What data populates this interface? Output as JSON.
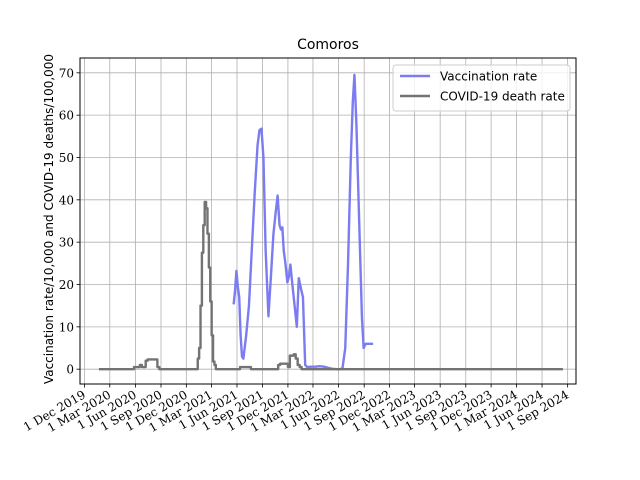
{
  "chart_data": {
    "type": "line",
    "title": "Comoros",
    "xlabel": "",
    "ylabel": "Vaccination rate/10,000 and COVID-19 deaths/100,000",
    "x_axis_type": "date",
    "xlim": [
      "2019-11-15",
      "2024-10-01"
    ],
    "ylim": [
      -3.5,
      73.5
    ],
    "y_ticks": [
      0,
      10,
      20,
      30,
      40,
      50,
      60,
      70
    ],
    "x_ticks": [
      {
        "date": "2019-12-01",
        "label": "1 Dec 2019"
      },
      {
        "date": "2020-03-01",
        "label": "1 Mar 2020"
      },
      {
        "date": "2020-06-01",
        "label": "1 Jun 2020"
      },
      {
        "date": "2020-09-01",
        "label": "1 Sep 2020"
      },
      {
        "date": "2020-12-01",
        "label": "1 Dec 2020"
      },
      {
        "date": "2021-03-01",
        "label": "1 Mar 2021"
      },
      {
        "date": "2021-06-01",
        "label": "1 Jun 2021"
      },
      {
        "date": "2021-09-01",
        "label": "1 Sep 2021"
      },
      {
        "date": "2021-12-01",
        "label": "1 Dec 2021"
      },
      {
        "date": "2022-03-01",
        "label": "1 Mar 2022"
      },
      {
        "date": "2022-06-01",
        "label": "1 Jun 2022"
      },
      {
        "date": "2022-09-01",
        "label": "1 Sep 2022"
      },
      {
        "date": "2022-12-01",
        "label": "1 Dec 2022"
      },
      {
        "date": "2023-03-01",
        "label": "1 Mar 2023"
      },
      {
        "date": "2023-06-01",
        "label": "1 Jun 2023"
      },
      {
        "date": "2023-09-01",
        "label": "1 Sep 2023"
      },
      {
        "date": "2023-12-01",
        "label": "1 Dec 2023"
      },
      {
        "date": "2024-03-01",
        "label": "1 Mar 2024"
      },
      {
        "date": "2024-06-01",
        "label": "1 Jun 2024"
      },
      {
        "date": "2024-09-01",
        "label": "1 Sep 2024"
      }
    ],
    "grid": true,
    "legend_position": "top-right",
    "series": [
      {
        "name": "Vaccination rate",
        "color": "#7b7bf2",
        "points": [
          [
            "2021-05-20",
            15.3
          ],
          [
            "2021-05-25",
            18.5
          ],
          [
            "2021-05-30",
            23.2
          ],
          [
            "2021-06-04",
            19.5
          ],
          [
            "2021-06-09",
            17.0
          ],
          [
            "2021-06-14",
            8.0
          ],
          [
            "2021-06-19",
            3.0
          ],
          [
            "2021-06-24",
            2.5
          ],
          [
            "2021-07-04",
            8.0
          ],
          [
            "2021-07-14",
            15.0
          ],
          [
            "2021-07-24",
            28.0
          ],
          [
            "2021-08-04",
            42.0
          ],
          [
            "2021-08-14",
            53.0
          ],
          [
            "2021-08-21",
            56.5
          ],
          [
            "2021-08-28",
            56.8
          ],
          [
            "2021-09-04",
            50.0
          ],
          [
            "2021-09-12",
            28.0
          ],
          [
            "2021-09-22",
            12.5
          ],
          [
            "2021-10-01",
            22.0
          ],
          [
            "2021-10-10",
            32.0
          ],
          [
            "2021-10-18",
            37.0
          ],
          [
            "2021-10-25",
            41.0
          ],
          [
            "2021-11-01",
            34.0
          ],
          [
            "2021-11-06",
            33.0
          ],
          [
            "2021-11-11",
            33.5
          ],
          [
            "2021-11-16",
            28.0
          ],
          [
            "2021-11-22",
            25.0
          ],
          [
            "2021-11-29",
            20.5
          ],
          [
            "2021-12-05",
            22.0
          ],
          [
            "2021-12-10",
            24.7
          ],
          [
            "2021-12-17",
            20.0
          ],
          [
            "2021-12-25",
            15.0
          ],
          [
            "2022-01-02",
            10.0
          ],
          [
            "2022-01-09",
            21.5
          ],
          [
            "2022-01-17",
            19.0
          ],
          [
            "2022-01-24",
            17.0
          ],
          [
            "2022-02-01",
            1.0
          ],
          [
            "2022-02-08",
            0.5
          ],
          [
            "2022-02-22",
            0.6
          ],
          [
            "2022-03-10",
            0.6
          ],
          [
            "2022-03-25",
            0.7
          ],
          [
            "2022-04-10",
            0.6
          ],
          [
            "2022-04-25",
            0.3
          ],
          [
            "2022-05-10",
            0.1
          ],
          [
            "2022-05-25",
            0.0
          ],
          [
            "2022-06-05",
            0.0
          ],
          [
            "2022-06-15",
            0.2
          ],
          [
            "2022-06-25",
            5.0
          ],
          [
            "2022-07-05",
            25.0
          ],
          [
            "2022-07-15",
            50.0
          ],
          [
            "2022-07-22",
            63.0
          ],
          [
            "2022-07-28",
            69.5
          ],
          [
            "2022-08-04",
            58.0
          ],
          [
            "2022-08-14",
            35.0
          ],
          [
            "2022-08-24",
            12.0
          ],
          [
            "2022-08-30",
            5.0
          ],
          [
            "2022-09-06",
            6.0
          ],
          [
            "2022-09-20",
            6.0
          ],
          [
            "2022-10-03",
            6.0
          ]
        ]
      },
      {
        "name": "COVID-19 death rate",
        "color": "#737373",
        "step": true,
        "points": [
          [
            "2020-01-22",
            0.0
          ],
          [
            "2020-05-20",
            0.0
          ],
          [
            "2020-05-27",
            0.5
          ],
          [
            "2020-06-10",
            0.5
          ],
          [
            "2020-06-17",
            1.0
          ],
          [
            "2020-06-24",
            0.5
          ],
          [
            "2020-07-01",
            0.5
          ],
          [
            "2020-07-08",
            2.0
          ],
          [
            "2020-07-15",
            2.3
          ],
          [
            "2020-08-12",
            2.3
          ],
          [
            "2020-08-19",
            0.5
          ],
          [
            "2020-08-26",
            0.0
          ],
          [
            "2021-01-06",
            0.0
          ],
          [
            "2021-01-11",
            2.5
          ],
          [
            "2021-01-16",
            5.0
          ],
          [
            "2021-01-21",
            15.0
          ],
          [
            "2021-01-26",
            27.5
          ],
          [
            "2021-01-31",
            34.0
          ],
          [
            "2021-02-05",
            39.5
          ],
          [
            "2021-02-10",
            38.0
          ],
          [
            "2021-02-15",
            32.0
          ],
          [
            "2021-02-20",
            24.0
          ],
          [
            "2021-02-25",
            16.0
          ],
          [
            "2021-03-02",
            8.0
          ],
          [
            "2021-03-07",
            1.8
          ],
          [
            "2021-03-12",
            1.0
          ],
          [
            "2021-03-17",
            0.0
          ],
          [
            "2021-06-05",
            0.0
          ],
          [
            "2021-06-12",
            0.5
          ],
          [
            "2021-07-14",
            0.5
          ],
          [
            "2021-07-21",
            0.0
          ],
          [
            "2021-10-20",
            0.0
          ],
          [
            "2021-10-27",
            1.0
          ],
          [
            "2021-11-03",
            1.3
          ],
          [
            "2021-11-24",
            1.3
          ],
          [
            "2021-12-01",
            0.5
          ],
          [
            "2021-12-08",
            3.2
          ],
          [
            "2021-12-22",
            3.5
          ],
          [
            "2021-12-29",
            2.5
          ],
          [
            "2022-01-05",
            1.0
          ],
          [
            "2022-01-12",
            0.5
          ],
          [
            "2022-01-19",
            0.0
          ],
          [
            "2024-08-15",
            0.0
          ]
        ]
      }
    ]
  }
}
